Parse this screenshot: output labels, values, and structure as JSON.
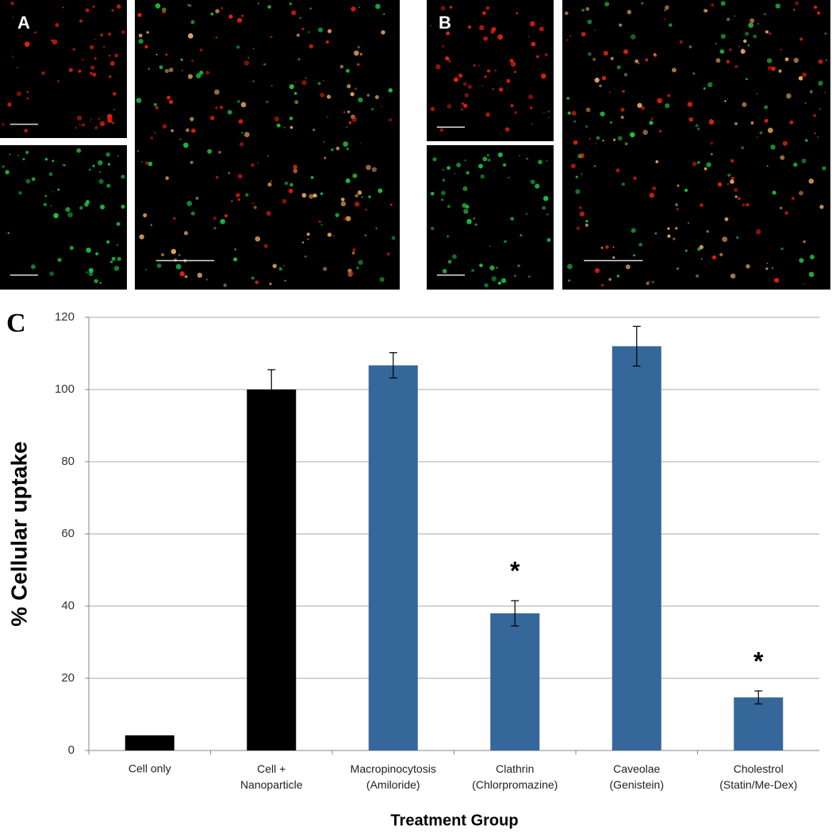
{
  "figure": {
    "panel_labels": [
      "A",
      "B"
    ]
  },
  "chart_data": {
    "type": "bar",
    "panel_label": "C",
    "y_label": "% Cellular uptake",
    "x_label": "Treatment Group",
    "categories": [
      "Cell only",
      "Cell +\nNanoparticle",
      "Macropinocytosis\n(Amiloride)",
      "Clathrin\n(Chlorpromazine)",
      "Caveolae\n(Genistein)",
      "Cholestrol\n(Statin/Me-Dex)"
    ],
    "values": [
      4.2,
      100,
      106.7,
      38,
      112,
      14.7
    ],
    "errors": [
      null,
      5.5,
      3.5,
      3.5,
      5.5,
      1.8
    ],
    "colors": [
      "#000000",
      "#000000",
      "#35679a",
      "#35679a",
      "#35679a",
      "#35679a"
    ],
    "significance_labels": [
      null,
      null,
      null,
      "*",
      null,
      "*"
    ],
    "ylim": [
      0,
      120
    ],
    "yticks": [
      0,
      20,
      40,
      60,
      80,
      100,
      120
    ],
    "grid": true
  }
}
